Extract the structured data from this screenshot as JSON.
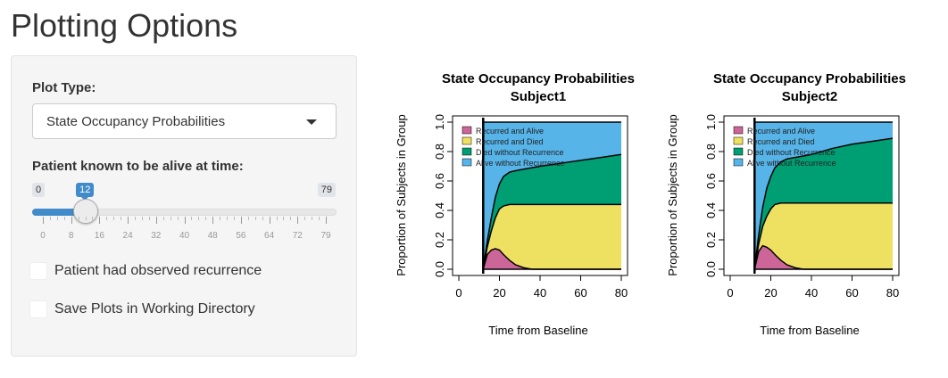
{
  "page": {
    "title": "Plotting Options"
  },
  "sidebar": {
    "plot_type_label": "Plot Type:",
    "plot_type_value": "State Occupancy Probabilities",
    "slider": {
      "label": "Patient known to be alive at time:",
      "min": 0,
      "max": 79,
      "value": 12,
      "min_text": "0",
      "max_text": "79",
      "value_text": "12",
      "tick_labels": [
        "0",
        "8",
        "16",
        "24",
        "32",
        "40",
        "48",
        "56",
        "64",
        "72",
        "79"
      ],
      "accent": "#428bca"
    },
    "checkbox_recurrence": {
      "label": "Patient had observed recurrence",
      "checked": false
    },
    "checkbox_save": {
      "label": "Save Plots in Working Directory",
      "checked": false
    }
  },
  "chart_data": [
    {
      "type": "area",
      "title": "State Occupancy Probabilities",
      "subtitle": "Subject1",
      "xlabel": "Time from Baseline",
      "ylabel": "Proportion of Subjects in Group",
      "xlim": [
        0,
        80
      ],
      "ylim": [
        0,
        1
      ],
      "x_ticks": [
        "0",
        "20",
        "40",
        "60",
        "80"
      ],
      "y_ticks": [
        "0.0",
        "0.2",
        "0.4",
        "0.6",
        "0.8",
        "1.0"
      ],
      "vline": 12,
      "legend_position": "top-left",
      "x": [
        12,
        14,
        16,
        18,
        20,
        22,
        25,
        28,
        32,
        36,
        40,
        50,
        60,
        70,
        80
      ],
      "series": [
        {
          "name": "Recurred and Alive",
          "color": "#cc6699",
          "values": [
            0.0,
            0.1,
            0.13,
            0.14,
            0.13,
            0.1,
            0.06,
            0.03,
            0.01,
            0.0,
            0.0,
            0.0,
            0.0,
            0.0,
            0.0
          ]
        },
        {
          "name": "Recurred and Died",
          "color": "#eee060",
          "values": [
            0.0,
            0.05,
            0.13,
            0.21,
            0.28,
            0.33,
            0.38,
            0.41,
            0.43,
            0.44,
            0.44,
            0.44,
            0.44,
            0.44,
            0.44
          ]
        },
        {
          "name": "Died without Recurrence",
          "color": "#009e73",
          "values": [
            0.0,
            0.04,
            0.09,
            0.14,
            0.17,
            0.2,
            0.22,
            0.23,
            0.24,
            0.25,
            0.26,
            0.28,
            0.3,
            0.32,
            0.34
          ]
        },
        {
          "name": "Alive without Recurrence",
          "color": "#56b4e9",
          "values": [
            1.0,
            0.81,
            0.65,
            0.51,
            0.42,
            0.37,
            0.34,
            0.33,
            0.32,
            0.31,
            0.3,
            0.28,
            0.26,
            0.24,
            0.22
          ]
        }
      ]
    },
    {
      "type": "area",
      "title": "State Occupancy Probabilities",
      "subtitle": "Subject2",
      "xlabel": "Time from Baseline",
      "ylabel": "Proportion of Subjects in Group",
      "xlim": [
        0,
        80
      ],
      "ylim": [
        0,
        1
      ],
      "x_ticks": [
        "0",
        "20",
        "40",
        "60",
        "80"
      ],
      "y_ticks": [
        "0.0",
        "0.2",
        "0.4",
        "0.6",
        "0.8",
        "1.0"
      ],
      "vline": 12,
      "legend_position": "top-left",
      "x": [
        12,
        14,
        16,
        18,
        20,
        22,
        25,
        28,
        32,
        36,
        40,
        50,
        60,
        70,
        80
      ],
      "series": [
        {
          "name": "Recurred and Alive",
          "color": "#cc6699",
          "values": [
            0.0,
            0.12,
            0.16,
            0.15,
            0.13,
            0.1,
            0.06,
            0.03,
            0.01,
            0.0,
            0.0,
            0.0,
            0.0,
            0.0,
            0.0
          ]
        },
        {
          "name": "Recurred and Died",
          "color": "#eee060",
          "values": [
            0.0,
            0.05,
            0.13,
            0.21,
            0.28,
            0.34,
            0.39,
            0.42,
            0.44,
            0.45,
            0.45,
            0.45,
            0.45,
            0.45,
            0.45
          ]
        },
        {
          "name": "Died without Recurrence",
          "color": "#009e73",
          "values": [
            0.0,
            0.06,
            0.13,
            0.19,
            0.22,
            0.25,
            0.28,
            0.3,
            0.31,
            0.32,
            0.33,
            0.37,
            0.4,
            0.42,
            0.44
          ]
        },
        {
          "name": "Alive without Recurrence",
          "color": "#56b4e9",
          "values": [
            1.0,
            0.77,
            0.58,
            0.45,
            0.37,
            0.31,
            0.27,
            0.25,
            0.24,
            0.23,
            0.22,
            0.18,
            0.15,
            0.13,
            0.11
          ]
        }
      ]
    }
  ]
}
